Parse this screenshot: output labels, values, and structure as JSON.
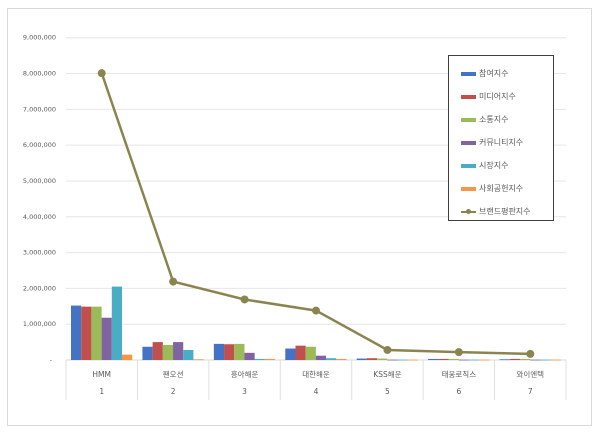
{
  "chart_data": {
    "type": "bar+line",
    "categories": [
      "HMM",
      "팬오션",
      "흥아해운",
      "대한해운",
      "KSS해운",
      "태웅로직스",
      "와이엔텍"
    ],
    "category_numbers": [
      "1",
      "2",
      "3",
      "4",
      "5",
      "6",
      "7"
    ],
    "ylim": [
      0,
      9000000
    ],
    "yticks": [
      "-",
      "1,000,000",
      "2,000,000",
      "3,000,000",
      "4,000,000",
      "5,000,000",
      "6,000,000",
      "7,000,000",
      "8,000,000",
      "9,000,000"
    ],
    "grid": true,
    "legend_position": "top-right",
    "series": [
      {
        "name": "참여지수",
        "type": "bar",
        "color": "#4472c4",
        "values": [
          1520000,
          370000,
          450000,
          320000,
          40000,
          30000,
          20000
        ]
      },
      {
        "name": "미디어지수",
        "type": "bar",
        "color": "#c0504d",
        "values": [
          1490000,
          500000,
          440000,
          400000,
          50000,
          30000,
          30000
        ]
      },
      {
        "name": "소통지수",
        "type": "bar",
        "color": "#9bbb59",
        "values": [
          1490000,
          420000,
          450000,
          370000,
          40000,
          30000,
          30000
        ]
      },
      {
        "name": "커뮤니티지수",
        "type": "bar",
        "color": "#8064a2",
        "values": [
          1180000,
          500000,
          200000,
          120000,
          10000,
          10000,
          10000
        ]
      },
      {
        "name": "시장지수",
        "type": "bar",
        "color": "#4bacc6",
        "values": [
          2050000,
          280000,
          30000,
          50000,
          10000,
          10000,
          10000
        ]
      },
      {
        "name": "사회공헌지수",
        "type": "bar",
        "color": "#f79646",
        "values": [
          150000,
          20000,
          30000,
          30000,
          10000,
          10000,
          10000
        ]
      },
      {
        "name": "브랜드평판지수",
        "type": "line",
        "color": "#8a8550",
        "values": [
          8010000,
          2190000,
          1690000,
          1380000,
          280000,
          220000,
          170000
        ]
      }
    ]
  }
}
